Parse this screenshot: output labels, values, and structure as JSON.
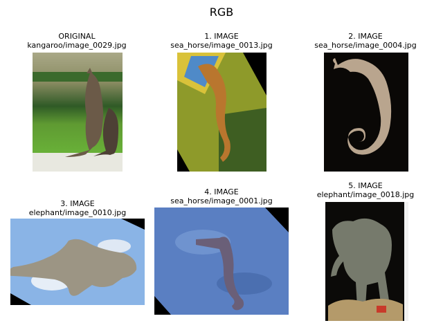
{
  "figure": {
    "title": "RGB"
  },
  "panels": [
    {
      "label": "ORIGINAL",
      "file": "kangaroo/image_0029.jpg"
    },
    {
      "label": "1. IMAGE",
      "file": "sea_horse/image_0013.jpg"
    },
    {
      "label": "2. IMAGE",
      "file": "sea_horse/image_0004.jpg"
    },
    {
      "label": "3. IMAGE",
      "file": "elephant/image_0010.jpg"
    },
    {
      "label": "4. IMAGE",
      "file": "sea_horse/image_0001.jpg"
    },
    {
      "label": "5. IMAGE",
      "file": "elephant/image_0018.jpg"
    }
  ]
}
